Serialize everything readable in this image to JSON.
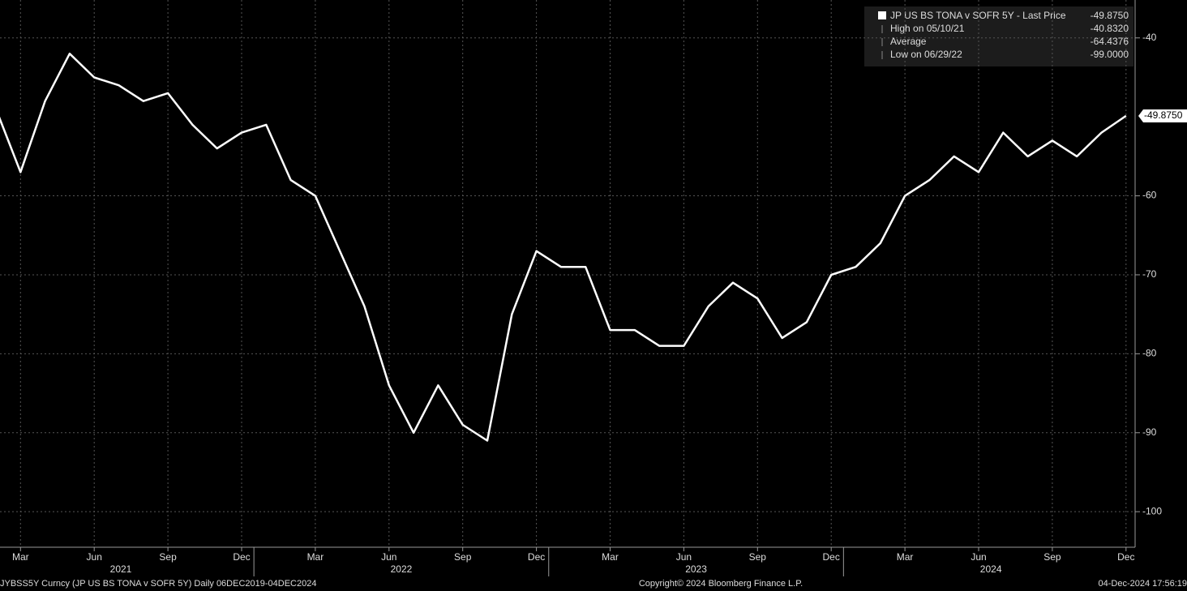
{
  "chart_data": {
    "type": "line",
    "x": [
      "2021-02",
      "2021-03",
      "2021-04",
      "2021-05",
      "2021-06",
      "2021-07",
      "2021-08",
      "2021-09",
      "2021-10",
      "2021-11",
      "2021-12",
      "2022-01",
      "2022-02",
      "2022-03",
      "2022-04",
      "2022-05",
      "2022-06",
      "2022-07",
      "2022-08",
      "2022-09",
      "2022-10",
      "2022-11",
      "2022-12",
      "2023-01",
      "2023-02",
      "2023-03",
      "2023-04",
      "2023-05",
      "2023-06",
      "2023-07",
      "2023-08",
      "2023-09",
      "2023-10",
      "2023-11",
      "2023-12",
      "2024-01",
      "2024-02",
      "2024-03",
      "2024-04",
      "2024-05",
      "2024-06",
      "2024-07",
      "2024-08",
      "2024-09",
      "2024-10",
      "2024-11",
      "2024-12"
    ],
    "series": [
      {
        "name": "JP US BS TONA v SOFR 5Y - Last Price",
        "color": "#ffffff",
        "values": [
          -49,
          -57,
          -48,
          -42,
          -45,
          -46,
          -48,
          -47,
          -51,
          -54,
          -52,
          -51,
          -58,
          -60,
          -67,
          -74,
          -84,
          -90,
          -84,
          -89,
          -91,
          -75,
          -67,
          -69,
          -69,
          -77,
          -77,
          -79,
          -79,
          -74,
          -71,
          -73,
          -78,
          -76,
          -70,
          -69,
          -66,
          -60,
          -58,
          -55,
          -57,
          -52,
          -55,
          -53,
          -55,
          -52,
          -49.875
        ]
      }
    ],
    "last_price_label": "-49.8750",
    "legend_stats": [
      {
        "label": "High on 05/10/21",
        "value_label": "-40.8320"
      },
      {
        "label": "Average",
        "value_label": "-64.4376"
      },
      {
        "label": "Low on 06/29/22",
        "value_label": "-99.0000"
      }
    ],
    "ylim": [
      -104.5,
      -35.2
    ],
    "yticks": [
      -40,
      -60,
      -70,
      -80,
      -90,
      -100
    ],
    "xticks": [
      {
        "value": "2021-03",
        "label": "Mar"
      },
      {
        "value": "2021-06",
        "label": "Jun"
      },
      {
        "value": "2021-09",
        "label": "Sep"
      },
      {
        "value": "2021-12",
        "label": "Dec"
      },
      {
        "value": "2022-03",
        "label": "Mar"
      },
      {
        "value": "2022-06",
        "label": "Jun"
      },
      {
        "value": "2022-09",
        "label": "Sep"
      },
      {
        "value": "2022-12",
        "label": "Dec"
      },
      {
        "value": "2023-03",
        "label": "Mar"
      },
      {
        "value": "2023-06",
        "label": "Jun"
      },
      {
        "value": "2023-09",
        "label": "Sep"
      },
      {
        "value": "2023-12",
        "label": "Dec"
      },
      {
        "value": "2024-03",
        "label": "Mar"
      },
      {
        "value": "2024-06",
        "label": "Jun"
      },
      {
        "value": "2024-09",
        "label": "Sep"
      },
      {
        "value": "2024-12",
        "label": "Dec"
      }
    ],
    "years": [
      "2021",
      "2022",
      "2023",
      "2024"
    ],
    "grid": true,
    "footer_left": "JYBSS5Y Curncy (JP US BS TONA v SOFR 5Y)  Daily 06DEC2019-04DEC2024",
    "footer_center": "Copyright© 2024 Bloomberg Finance L.P.",
    "footer_right": "04-Dec-2024 17:56:19"
  }
}
